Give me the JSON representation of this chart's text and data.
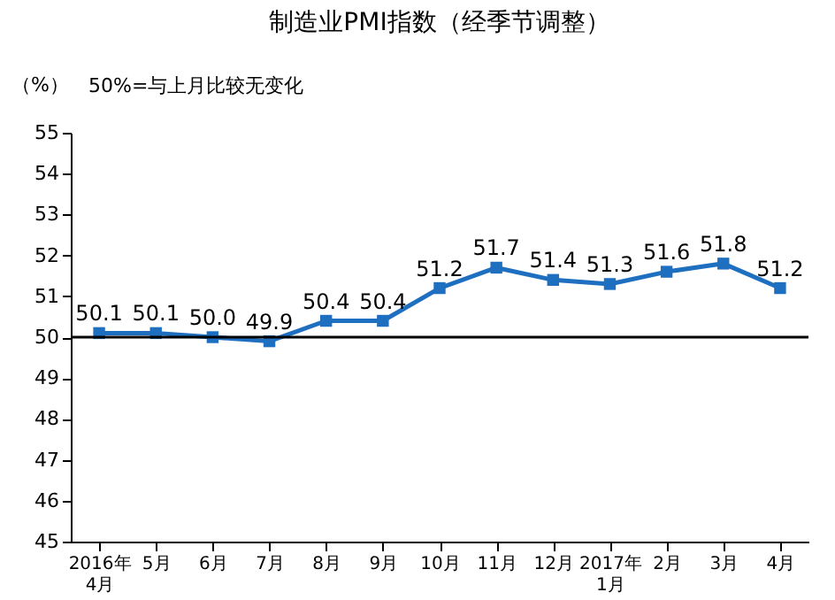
{
  "chart_data": {
    "type": "line",
    "title": "制造业PMI指数（经季节调整）",
    "ylabel": "（%）",
    "annotations": [
      "50%=与上月比较无变化"
    ],
    "categories": [
      "2016年\n4月",
      "5月",
      "6月",
      "7月",
      "8月",
      "9月",
      "10月",
      "11月",
      "12月",
      "2017年\n1月",
      "2月",
      "3月",
      "4月"
    ],
    "series": [
      {
        "color": "#1f6fc0",
        "values": [
          50.1,
          50.1,
          50.0,
          49.9,
          50.4,
          50.4,
          51.2,
          51.7,
          51.4,
          51.3,
          51.6,
          51.8,
          51.2
        ],
        "value_labels": [
          "50.1",
          "50.1",
          "50.0",
          "49.9",
          "50.4",
          "50.4",
          "51.2",
          "51.7",
          "51.4",
          "51.3",
          "51.6",
          "51.8",
          "51.2"
        ]
      }
    ],
    "ylim": [
      45,
      55
    ],
    "yticks": [
      45,
      46,
      47,
      48,
      49,
      50,
      51,
      52,
      53,
      54,
      55
    ],
    "ref_lines": [
      {
        "axis": "y",
        "value": 50,
        "color": "#000000"
      }
    ],
    "marker": "square"
  }
}
